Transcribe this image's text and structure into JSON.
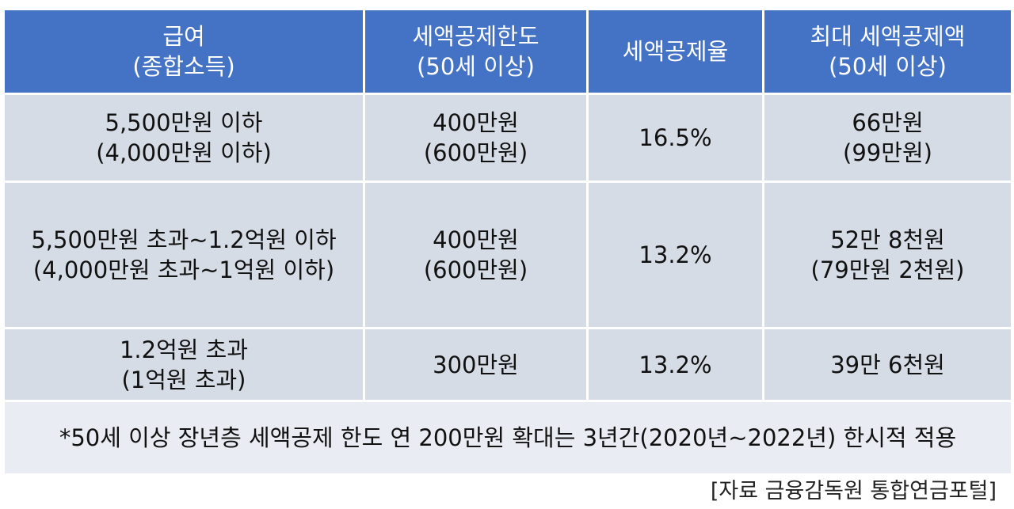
{
  "header": {
    "col1": [
      "급여",
      "(종합소득)"
    ],
    "col2": [
      "세액공제한도",
      "(50세 이상)"
    ],
    "col3": [
      "세액공제율"
    ],
    "col4": [
      "최대 세액공제액",
      "(50세 이상)"
    ]
  },
  "rows": [
    {
      "salary": [
        "5,500만원 이하",
        "(4,000만원 이하)"
      ],
      "limit": [
        "400만원",
        "(600만원)"
      ],
      "rate": "16.5%",
      "max": [
        "66만원",
        "(99만원)"
      ]
    },
    {
      "salary": [
        "5,500만원 초과~1.2억원 이하",
        "(4,000만원 초과~1억원 이하)"
      ],
      "limit": [
        "400만원",
        "(600만원)"
      ],
      "rate": "13.2%",
      "max": [
        "52만 8천원",
        "(79만원 2천원)"
      ]
    },
    {
      "salary": [
        "1.2억원 초과",
        "(1억원 초과)"
      ],
      "limit": [
        "300만원"
      ],
      "rate": "13.2%",
      "max": [
        "39만 6천원"
      ]
    }
  ],
  "note": "*50세 이상 장년층 세액공제 한도 연 200만원 확대는 3년간(2020년~2022년) 한시적 적용",
  "source": "[자료 금융감독원 통합연금포털]",
  "colors": {
    "header_bg": "#4472c4",
    "cell_bg": "#d6dce5",
    "note_bg": "#e9ecf2"
  }
}
